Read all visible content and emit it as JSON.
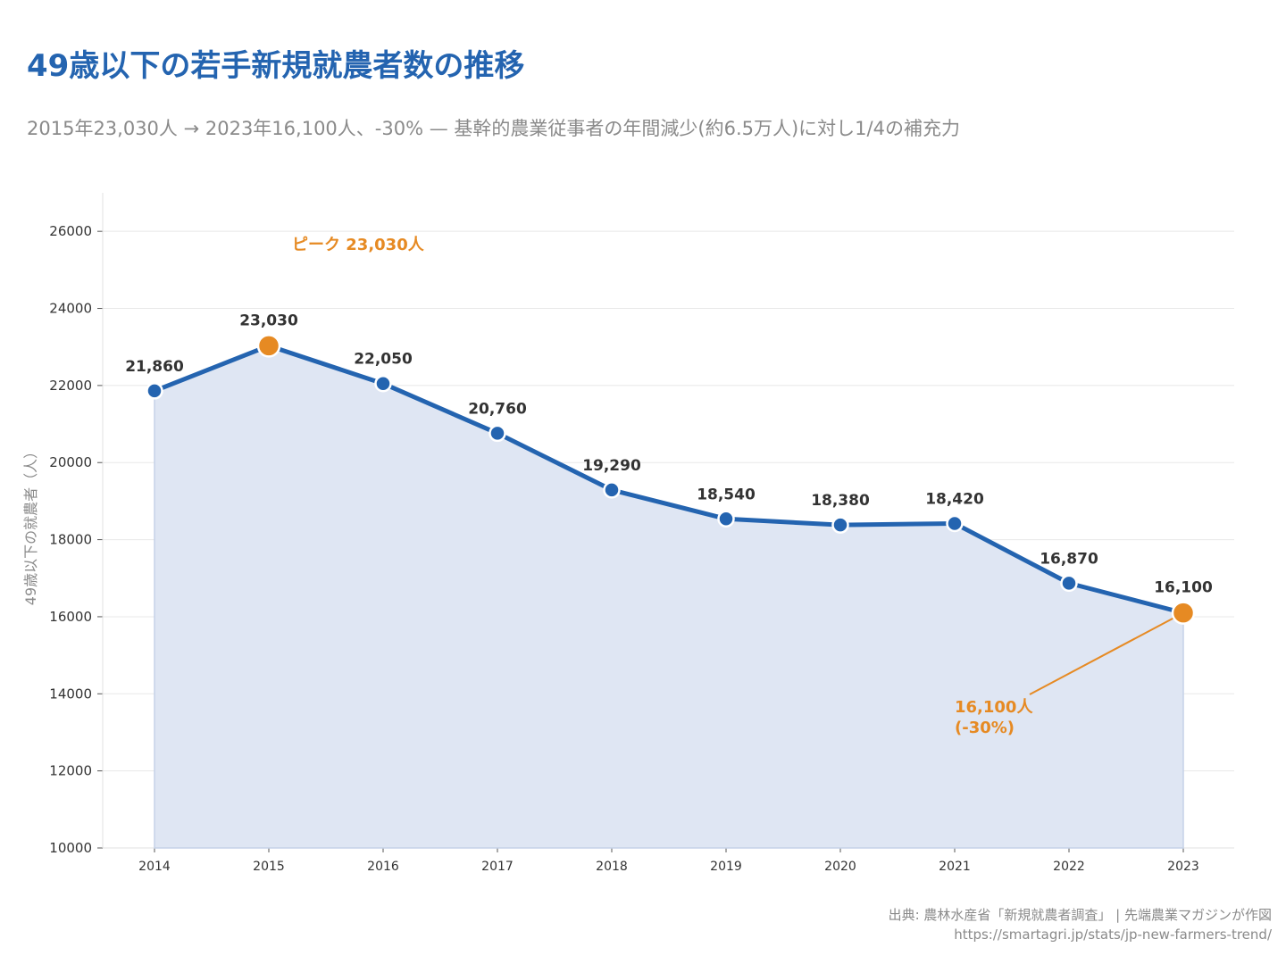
{
  "header": {
    "title": "49歳以下の若手新規就農者数の推移",
    "subtitle": "2015年23,030人 → 2023年16,100人、-30% — 基幹的農業従事者の年間減少(約6.5万人)に対し1/4の補充力"
  },
  "footer": {
    "source": "出典: 農林水産省「新規就農者調査」 | 先端農業マガジンが作図",
    "url": "https://smartagri.jp/stats/jp-new-farmers-trend/"
  },
  "chart_data": {
    "type": "area",
    "x": [
      2014,
      2015,
      2016,
      2017,
      2018,
      2019,
      2020,
      2021,
      2022,
      2023
    ],
    "values": [
      21860,
      23030,
      22050,
      20760,
      19290,
      18540,
      18380,
      18420,
      16870,
      16100
    ],
    "data_labels": [
      "21,860",
      "23,030",
      "22,050",
      "20,760",
      "19,290",
      "18,540",
      "18,380",
      "18,420",
      "16,870",
      "16,100"
    ],
    "xlabel": "",
    "ylabel": "49歳以下の就農者（人）",
    "ylim": [
      10000,
      27000
    ],
    "yticks": [
      10000,
      12000,
      14000,
      16000,
      18000,
      20000,
      22000,
      24000,
      26000
    ],
    "xticks": [
      2014,
      2015,
      2016,
      2017,
      2018,
      2019,
      2020,
      2021,
      2022,
      2023
    ],
    "grid": true,
    "highlight_points": [
      2015,
      2023
    ],
    "annotations": [
      {
        "text": "ピーク 23,030人",
        "x": 2015
      },
      {
        "text": "16,100人",
        "text2": "(-30%)",
        "x": 2023
      }
    ],
    "colors": {
      "line": "#2464b0",
      "fill": "#dfe6f3",
      "highlight": "#e68a23",
      "label": "#333333",
      "grid": "#e8e8e8"
    }
  }
}
